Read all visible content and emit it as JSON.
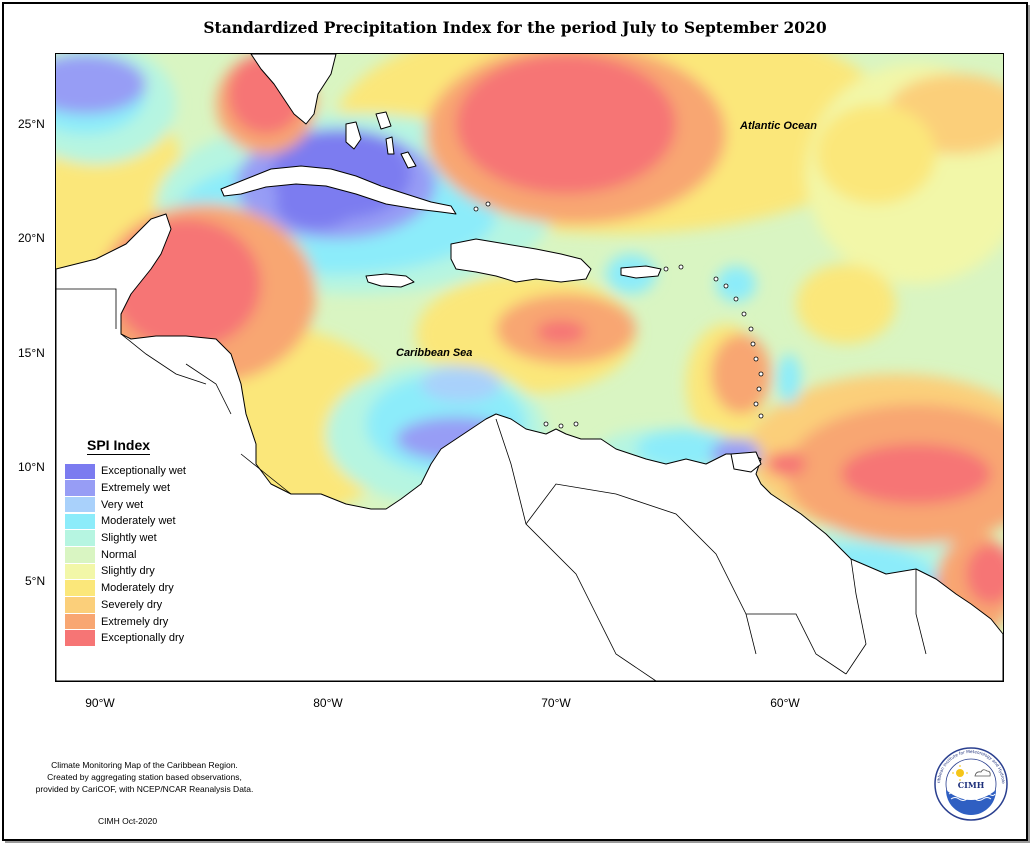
{
  "title": "Standardized Precipitation Index for the period July to September 2020",
  "axes": {
    "lat_labels": [
      "25°N",
      "20°N",
      "15°N",
      "10°N",
      "5°N"
    ],
    "lon_labels": [
      "90°W",
      "80°W",
      "70°W",
      "60°W"
    ]
  },
  "map_labels": {
    "atlantic": "Atlantic Ocean",
    "caribbean": "Caribbean Sea"
  },
  "legend": {
    "title": "SPI Index",
    "items": [
      {
        "label": "Exceptionally wet",
        "color": "#7b7bf0"
      },
      {
        "label": "Extremely wet",
        "color": "#979df5"
      },
      {
        "label": "Very wet",
        "color": "#a9d1fb"
      },
      {
        "label": "Moderately wet",
        "color": "#8cecfa"
      },
      {
        "label": "Slightly wet",
        "color": "#b6f5e1"
      },
      {
        "label": "Normal",
        "color": "#d9f5c2"
      },
      {
        "label": "Slightly dry",
        "color": "#f2f7a8"
      },
      {
        "label": "Moderately dry",
        "color": "#fbe77a"
      },
      {
        "label": "Severely dry",
        "color": "#fbcf7a"
      },
      {
        "label": "Extremely dry",
        "color": "#f8a672"
      },
      {
        "label": "Exceptionally dry",
        "color": "#f67575"
      }
    ]
  },
  "credits": {
    "line1": "Climate Monitoring Map of the Caribbean Region.",
    "line2": "Created by aggregating station based observations,",
    "line3": "provided by CariCOF, with NCEP/NCAR Reanalysis Data.",
    "date": "CIMH Oct-2020"
  },
  "logo": {
    "text": "CIMH",
    "ring_text": "Caribbean Institute for Meteorology and Hydrology"
  }
}
